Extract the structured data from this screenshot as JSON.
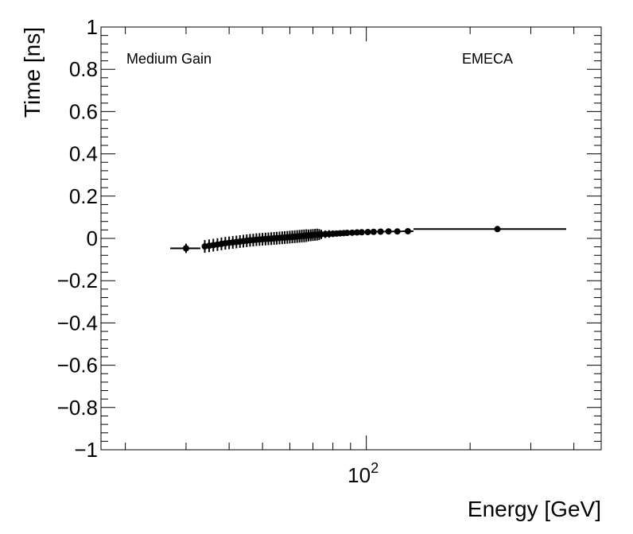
{
  "chart_data": {
    "type": "scatter",
    "xscale": "log",
    "xlim": [
      17,
      480
    ],
    "ylim": [
      -1,
      1
    ],
    "xlabel": "Energy [GeV]",
    "ylabel": "Time [ns]",
    "x_tick_labels": [
      {
        "value": 100,
        "base": "10",
        "exp": "2"
      }
    ],
    "y_tick_labels": [
      {
        "value": 1,
        "label": "1"
      },
      {
        "value": 0.8,
        "label": "0.8"
      },
      {
        "value": 0.6,
        "label": "0.6"
      },
      {
        "value": 0.4,
        "label": "0.4"
      },
      {
        "value": 0.2,
        "label": "0.2"
      },
      {
        "value": 0,
        "label": "0"
      },
      {
        "value": -0.2,
        "label": "−0.2"
      },
      {
        "value": -0.4,
        "label": "−0.4"
      },
      {
        "value": -0.6,
        "label": "−0.6"
      },
      {
        "value": -0.8,
        "label": "−0.8"
      },
      {
        "value": -1,
        "label": "−1"
      }
    ],
    "annotations": {
      "left": "Medium Gain",
      "right": "EMECA"
    },
    "marker_color": "#000000",
    "points": [
      {
        "x": 30,
        "y": -0.047,
        "xlo": 27,
        "xhi": 33,
        "ey": 0.022
      },
      {
        "x": 34,
        "y": -0.038,
        "xlo": 33.5,
        "xhi": 34.5,
        "ey": 0.03
      },
      {
        "x": 35,
        "y": -0.035,
        "xlo": 34.5,
        "xhi": 35.5,
        "ey": 0.03
      },
      {
        "x": 36,
        "y": -0.032,
        "xlo": 35.5,
        "xhi": 36.5,
        "ey": 0.03
      },
      {
        "x": 37,
        "y": -0.029,
        "xlo": 36.5,
        "xhi": 37.5,
        "ey": 0.03
      },
      {
        "x": 38,
        "y": -0.026,
        "xlo": 37.5,
        "xhi": 38.5,
        "ey": 0.03
      },
      {
        "x": 39,
        "y": -0.023,
        "xlo": 38.5,
        "xhi": 39.5,
        "ey": 0.03
      },
      {
        "x": 40,
        "y": -0.021,
        "xlo": 39.5,
        "xhi": 40.5,
        "ey": 0.03
      },
      {
        "x": 41,
        "y": -0.019,
        "xlo": 40.5,
        "xhi": 41.5,
        "ey": 0.03
      },
      {
        "x": 42,
        "y": -0.017,
        "xlo": 41.5,
        "xhi": 42.5,
        "ey": 0.03
      },
      {
        "x": 43,
        "y": -0.015,
        "xlo": 42.5,
        "xhi": 43.5,
        "ey": 0.03
      },
      {
        "x": 44,
        "y": -0.013,
        "xlo": 43.5,
        "xhi": 44.5,
        "ey": 0.03
      },
      {
        "x": 45,
        "y": -0.011,
        "xlo": 44.5,
        "xhi": 45.5,
        "ey": 0.03
      },
      {
        "x": 46,
        "y": -0.009,
        "xlo": 45.5,
        "xhi": 46.5,
        "ey": 0.03
      },
      {
        "x": 47,
        "y": -0.008,
        "xlo": 46.5,
        "xhi": 47.5,
        "ey": 0.03
      },
      {
        "x": 48,
        "y": -0.006,
        "xlo": 47.5,
        "xhi": 48.5,
        "ey": 0.03
      },
      {
        "x": 49,
        "y": -0.005,
        "xlo": 48.5,
        "xhi": 49.5,
        "ey": 0.03
      },
      {
        "x": 50,
        "y": -0.004,
        "xlo": 49.5,
        "xhi": 50.5,
        "ey": 0.03
      },
      {
        "x": 51,
        "y": -0.003,
        "xlo": 50.5,
        "xhi": 51.5,
        "ey": 0.03
      },
      {
        "x": 52,
        "y": -0.002,
        "xlo": 51.5,
        "xhi": 52.5,
        "ey": 0.03
      },
      {
        "x": 53,
        "y": -0.001,
        "xlo": 52.5,
        "xhi": 53.5,
        "ey": 0.03
      },
      {
        "x": 54,
        "y": 0.0,
        "xlo": 53.5,
        "xhi": 54.5,
        "ey": 0.03
      },
      {
        "x": 55,
        "y": 0.001,
        "xlo": 54.5,
        "xhi": 55.5,
        "ey": 0.03
      },
      {
        "x": 56,
        "y": 0.002,
        "xlo": 55.5,
        "xhi": 56.5,
        "ey": 0.03
      },
      {
        "x": 57,
        "y": 0.003,
        "xlo": 56.5,
        "xhi": 57.5,
        "ey": 0.03
      },
      {
        "x": 58,
        "y": 0.004,
        "xlo": 57.5,
        "xhi": 58.5,
        "ey": 0.03
      },
      {
        "x": 59,
        "y": 0.005,
        "xlo": 58.5,
        "xhi": 59.5,
        "ey": 0.03
      },
      {
        "x": 60,
        "y": 0.006,
        "xlo": 59.5,
        "xhi": 60.5,
        "ey": 0.03
      },
      {
        "x": 61,
        "y": 0.007,
        "xlo": 60.5,
        "xhi": 61.5,
        "ey": 0.03
      },
      {
        "x": 62,
        "y": 0.008,
        "xlo": 61.5,
        "xhi": 62.5,
        "ey": 0.03
      },
      {
        "x": 63,
        "y": 0.009,
        "xlo": 62.5,
        "xhi": 63.5,
        "ey": 0.03
      },
      {
        "x": 64,
        "y": 0.01,
        "xlo": 63.5,
        "xhi": 64.5,
        "ey": 0.03
      },
      {
        "x": 65,
        "y": 0.011,
        "xlo": 64.5,
        "xhi": 65.5,
        "ey": 0.03
      },
      {
        "x": 66,
        "y": 0.012,
        "xlo": 65.5,
        "xhi": 66.5,
        "ey": 0.03
      },
      {
        "x": 67,
        "y": 0.013,
        "xlo": 66.5,
        "xhi": 67.5,
        "ey": 0.03
      },
      {
        "x": 68,
        "y": 0.014,
        "xlo": 67.5,
        "xhi": 68.5,
        "ey": 0.028
      },
      {
        "x": 69,
        "y": 0.015,
        "xlo": 68.5,
        "xhi": 69.5,
        "ey": 0.028
      },
      {
        "x": 70,
        "y": 0.016,
        "xlo": 69.5,
        "xhi": 70.5,
        "ey": 0.028
      },
      {
        "x": 71,
        "y": 0.017,
        "xlo": 70.5,
        "xhi": 71.5,
        "ey": 0.028
      },
      {
        "x": 72,
        "y": 0.018,
        "xlo": 71.5,
        "xhi": 72.5,
        "ey": 0.028
      },
      {
        "x": 73,
        "y": 0.018,
        "xlo": 72.5,
        "xhi": 73.5,
        "ey": 0.026
      },
      {
        "x": 74,
        "y": 0.019,
        "xlo": 73.5,
        "xhi": 74.5,
        "ey": 0.022
      },
      {
        "x": 76,
        "y": 0.02,
        "xlo": 75,
        "xhi": 77,
        "ey": 0.018
      },
      {
        "x": 78,
        "y": 0.021,
        "xlo": 77,
        "xhi": 79,
        "ey": 0.018
      },
      {
        "x": 80,
        "y": 0.022,
        "xlo": 79,
        "xhi": 81,
        "ey": 0.016
      },
      {
        "x": 82,
        "y": 0.023,
        "xlo": 81,
        "xhi": 83,
        "ey": 0.014
      },
      {
        "x": 84,
        "y": 0.024,
        "xlo": 83,
        "xhi": 85,
        "ey": 0.012
      },
      {
        "x": 86,
        "y": 0.025,
        "xlo": 85,
        "xhi": 87,
        "ey": 0.012
      },
      {
        "x": 88,
        "y": 0.026,
        "xlo": 87,
        "xhi": 89,
        "ey": 0.01
      },
      {
        "x": 91,
        "y": 0.027,
        "xlo": 89.5,
        "xhi": 92.5,
        "ey": 0.008
      },
      {
        "x": 94,
        "y": 0.028,
        "xlo": 92.5,
        "xhi": 95.5,
        "ey": 0.007
      },
      {
        "x": 97,
        "y": 0.029,
        "xlo": 95.5,
        "xhi": 98.5,
        "ey": 0.006
      },
      {
        "x": 101,
        "y": 0.03,
        "xlo": 99,
        "xhi": 103,
        "ey": 0.005
      },
      {
        "x": 105,
        "y": 0.031,
        "xlo": 103,
        "xhi": 107,
        "ey": 0.005
      },
      {
        "x": 110,
        "y": 0.032,
        "xlo": 107,
        "xhi": 113,
        "ey": 0.005
      },
      {
        "x": 116,
        "y": 0.033,
        "xlo": 113,
        "xhi": 119,
        "ey": 0.005
      },
      {
        "x": 123,
        "y": 0.033,
        "xlo": 119,
        "xhi": 127,
        "ey": 0.005
      },
      {
        "x": 132,
        "y": 0.034,
        "xlo": 127,
        "xhi": 137,
        "ey": 0.005
      },
      {
        "x": 240,
        "y": 0.044,
        "xlo": 137,
        "xhi": 380,
        "ey": 0.005
      }
    ]
  }
}
